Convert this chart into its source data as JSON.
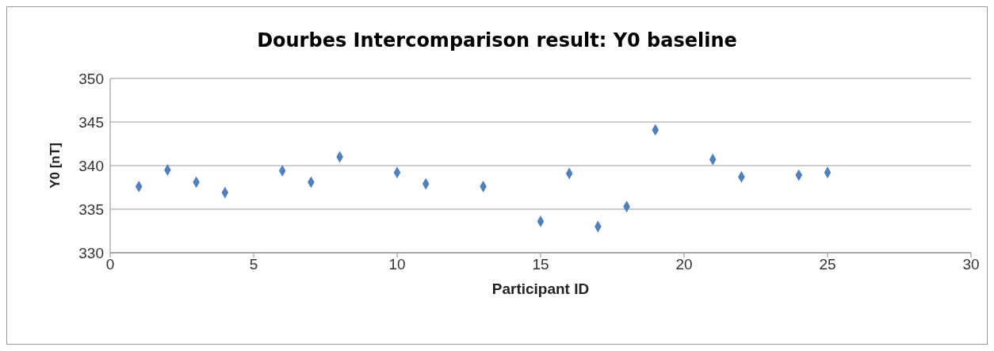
{
  "chart_data": {
    "type": "scatter",
    "title": "Dourbes Intercomparison result: Y0 baseline",
    "xlabel": "Participant ID",
    "ylabel": "Y0 [nT]",
    "x": [
      1,
      2,
      3,
      4,
      6,
      7,
      8,
      10,
      11,
      13,
      15,
      16,
      17,
      18,
      19,
      21,
      22,
      24,
      25
    ],
    "values": [
      337.6,
      339.5,
      338.1,
      336.9,
      339.4,
      338.1,
      341.0,
      339.2,
      337.9,
      337.6,
      333.6,
      339.1,
      333.0,
      335.3,
      344.1,
      340.7,
      338.7,
      338.9,
      339.2
    ],
    "color": "#4f81bd",
    "marker": "diamond",
    "xlim": [
      0,
      30
    ],
    "xticks": [
      0,
      5,
      10,
      15,
      20,
      25,
      30
    ],
    "ylim": [
      330,
      350
    ],
    "yticks": [
      330,
      335,
      340,
      345,
      350
    ],
    "grid": "y"
  }
}
